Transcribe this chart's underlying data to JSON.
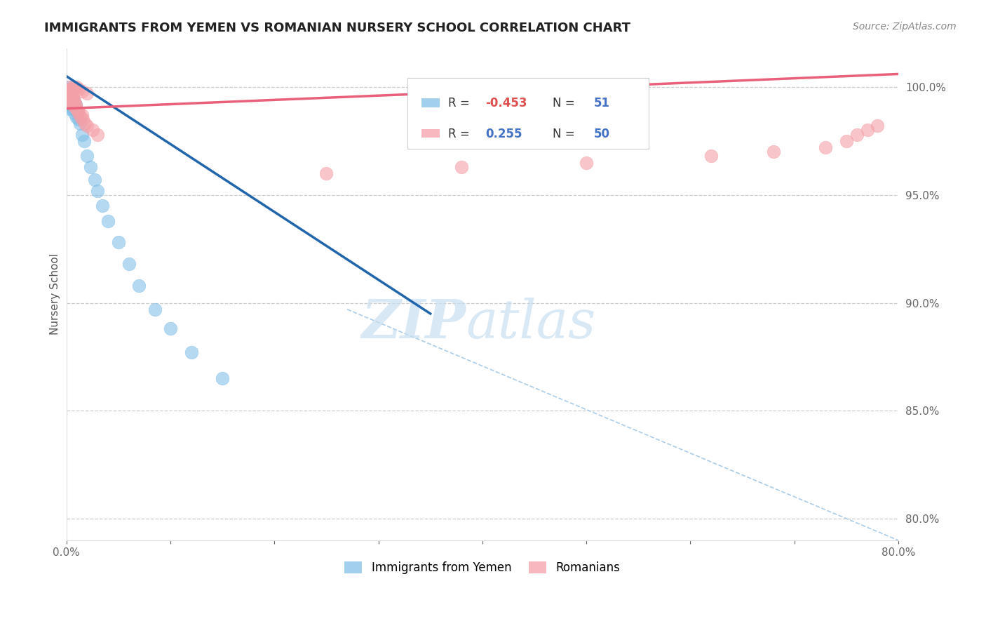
{
  "title": "IMMIGRANTS FROM YEMEN VS ROMANIAN NURSERY SCHOOL CORRELATION CHART",
  "source": "Source: ZipAtlas.com",
  "ylabel": "Nursery School",
  "xlim": [
    0.0,
    0.8
  ],
  "ylim": [
    0.79,
    1.018
  ],
  "x_ticks": [
    0.0,
    0.1,
    0.2,
    0.3,
    0.4,
    0.5,
    0.6,
    0.7,
    0.8
  ],
  "x_tick_labels": [
    "0.0%",
    "",
    "",
    "",
    "",
    "",
    "",
    "",
    "80.0%"
  ],
  "y_ticks": [
    0.8,
    0.85,
    0.9,
    0.95,
    1.0
  ],
  "y_tick_labels": [
    "80.0%",
    "85.0%",
    "90.0%",
    "95.0%",
    "100.0%"
  ],
  "blue_color": "#82c0e8",
  "pink_color": "#f4a0a8",
  "blue_line_color": "#2166ac",
  "pink_line_color": "#e8607a",
  "grid_color": "#cccccc",
  "blue_line_x": [
    0.0,
    0.35
  ],
  "blue_line_y": [
    1.005,
    0.895
  ],
  "pink_line_x": [
    0.0,
    0.8
  ],
  "pink_line_y": [
    0.99,
    1.006
  ],
  "diag_line_x": [
    0.27,
    0.8
  ],
  "diag_line_y": [
    0.897,
    0.79
  ],
  "blue_scatter_x": [
    0.001,
    0.001,
    0.001,
    0.002,
    0.002,
    0.002,
    0.002,
    0.003,
    0.003,
    0.003,
    0.003,
    0.003,
    0.004,
    0.004,
    0.004,
    0.005,
    0.005,
    0.005,
    0.006,
    0.006,
    0.007,
    0.007,
    0.008,
    0.008,
    0.009,
    0.01,
    0.011,
    0.012,
    0.013,
    0.015,
    0.017,
    0.02,
    0.023,
    0.027,
    0.03,
    0.035,
    0.04,
    0.05,
    0.06,
    0.07,
    0.085,
    0.1,
    0.12,
    0.15,
    0.01,
    0.008,
    0.006,
    0.004,
    0.003,
    0.002,
    0.001
  ],
  "blue_scatter_y": [
    1.0,
    0.998,
    0.996,
    0.998,
    0.996,
    0.994,
    0.992,
    0.998,
    0.996,
    0.994,
    0.992,
    0.99,
    0.997,
    0.994,
    0.992,
    0.996,
    0.994,
    0.992,
    0.995,
    0.993,
    0.994,
    0.992,
    0.993,
    0.99,
    0.992,
    0.99,
    0.988,
    0.985,
    0.983,
    0.978,
    0.975,
    0.968,
    0.963,
    0.957,
    0.952,
    0.945,
    0.938,
    0.928,
    0.918,
    0.908,
    0.897,
    0.888,
    0.877,
    0.865,
    0.986,
    0.988,
    0.99,
    0.993,
    0.995,
    0.997,
    0.999
  ],
  "pink_scatter_x": [
    0.001,
    0.001,
    0.002,
    0.002,
    0.002,
    0.003,
    0.003,
    0.003,
    0.004,
    0.004,
    0.004,
    0.005,
    0.005,
    0.006,
    0.006,
    0.007,
    0.007,
    0.008,
    0.008,
    0.009,
    0.01,
    0.011,
    0.012,
    0.014,
    0.016,
    0.018,
    0.02,
    0.025,
    0.03,
    0.015,
    0.003,
    0.004,
    0.005,
    0.006,
    0.007,
    0.008,
    0.01,
    0.012,
    0.015,
    0.02,
    0.25,
    0.38,
    0.5,
    0.62,
    0.68,
    0.73,
    0.75,
    0.76,
    0.77,
    0.78
  ],
  "pink_scatter_y": [
    0.998,
    0.996,
    0.998,
    0.996,
    0.994,
    0.998,
    0.996,
    0.994,
    0.997,
    0.995,
    0.993,
    0.996,
    0.994,
    0.995,
    0.993,
    0.994,
    0.992,
    0.993,
    0.991,
    0.992,
    0.99,
    0.989,
    0.988,
    0.986,
    0.985,
    0.983,
    0.982,
    0.98,
    0.978,
    0.987,
    1.0,
    0.999,
    0.998,
    0.999,
    1.0,
    0.999,
    1.0,
    0.999,
    0.998,
    0.997,
    0.96,
    0.963,
    0.965,
    0.968,
    0.97,
    0.972,
    0.975,
    0.978,
    0.98,
    0.982
  ]
}
